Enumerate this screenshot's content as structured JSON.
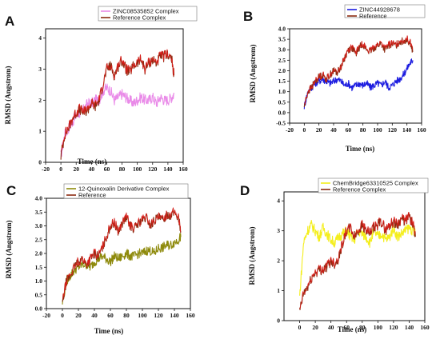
{
  "chart_data": [
    {
      "type": "line",
      "panel": "A",
      "xlabel": "Time (ns)",
      "ylabel": "RMSD (Angstrom)",
      "xlim": [
        -20,
        160
      ],
      "ylim": [
        0,
        4.3
      ],
      "xticks": [
        "-20",
        "0",
        "20",
        "40",
        "60",
        "80",
        "100",
        "120",
        "140",
        "160"
      ],
      "yticks": [
        "0",
        "1",
        "2",
        "3",
        "4"
      ],
      "legend_position": "top",
      "series": [
        {
          "name": "ZINC08535852 Complex",
          "color": "#e98ae8",
          "x": [
            0,
            5,
            10,
            15,
            20,
            25,
            30,
            35,
            40,
            45,
            50,
            55,
            60,
            65,
            70,
            75,
            80,
            85,
            90,
            95,
            100,
            105,
            110,
            115,
            120,
            125,
            130,
            135,
            140,
            145,
            148
          ],
          "y": [
            0.2,
            0.9,
            1.1,
            1.3,
            1.5,
            1.6,
            1.7,
            1.9,
            1.9,
            2.0,
            2.0,
            2.3,
            2.4,
            2.3,
            2.0,
            2.1,
            2.2,
            2.1,
            2.0,
            1.9,
            2.0,
            2.1,
            2.0,
            2.0,
            2.1,
            1.9,
            2.1,
            2.0,
            2.0,
            2.1,
            2.2
          ]
        },
        {
          "name": "Reference Complex",
          "color": "#8b2a10",
          "color2": "#e51c1c",
          "x": [
            0,
            5,
            10,
            15,
            20,
            25,
            30,
            35,
            40,
            45,
            50,
            55,
            60,
            65,
            70,
            75,
            80,
            85,
            90,
            95,
            100,
            105,
            110,
            115,
            120,
            125,
            130,
            135,
            140,
            145,
            148
          ],
          "y": [
            0.2,
            0.9,
            1.1,
            1.4,
            1.6,
            1.7,
            1.6,
            1.7,
            1.9,
            1.8,
            2.0,
            2.5,
            3.0,
            3.1,
            2.8,
            3.1,
            3.3,
            3.0,
            2.9,
            3.1,
            3.2,
            3.3,
            3.0,
            3.2,
            3.3,
            3.2,
            3.4,
            3.4,
            3.5,
            3.3,
            2.8
          ]
        }
      ]
    },
    {
      "type": "line",
      "panel": "B",
      "xlabel": "Time (ns)",
      "ylabel": "RMSD (Angstrom)",
      "xlim": [
        -20,
        160
      ],
      "ylim": [
        -0.5,
        4.0
      ],
      "xticks": [
        "-20",
        "0",
        "20",
        "40",
        "60",
        "80",
        "100",
        "120",
        "140",
        "160"
      ],
      "yticks": [
        "-0.5",
        "0.0",
        "0.5",
        "1.0",
        "1.5",
        "2.0",
        "2.5",
        "3.0",
        "3.5",
        "4.0"
      ],
      "legend_position": "top",
      "series": [
        {
          "name": "ZINC44928678",
          "color": "#1c1ce0",
          "x": [
            0,
            5,
            10,
            15,
            20,
            25,
            30,
            35,
            40,
            45,
            50,
            55,
            60,
            65,
            70,
            75,
            80,
            85,
            90,
            95,
            100,
            105,
            110,
            115,
            120,
            125,
            130,
            135,
            140,
            145,
            148
          ],
          "y": [
            0.3,
            1.0,
            1.2,
            1.4,
            1.5,
            1.6,
            1.5,
            1.4,
            1.5,
            1.6,
            1.5,
            1.3,
            1.4,
            1.2,
            1.3,
            1.4,
            1.3,
            1.4,
            1.2,
            1.3,
            1.4,
            1.3,
            1.5,
            1.2,
            1.3,
            1.5,
            1.6,
            1.8,
            2.1,
            2.4,
            2.5
          ]
        },
        {
          "name": "Reference",
          "color": "#8b2a10",
          "color2": "#e51c1c",
          "x": [
            0,
            5,
            10,
            15,
            20,
            25,
            30,
            35,
            40,
            45,
            50,
            55,
            60,
            65,
            70,
            75,
            80,
            85,
            90,
            95,
            100,
            105,
            110,
            115,
            120,
            125,
            130,
            135,
            140,
            145,
            148
          ],
          "y": [
            0.3,
            1.0,
            1.2,
            1.5,
            1.7,
            1.8,
            1.6,
            1.8,
            2.0,
            1.9,
            2.2,
            2.6,
            3.0,
            3.1,
            2.8,
            3.1,
            3.3,
            3.0,
            2.9,
            3.1,
            3.2,
            3.3,
            3.0,
            3.2,
            3.3,
            3.2,
            3.4,
            3.4,
            3.5,
            3.3,
            2.9
          ]
        }
      ]
    },
    {
      "type": "line",
      "panel": "C",
      "xlabel": "Time (ns)",
      "ylabel": "RMSD (Angstrom)",
      "xlim": [
        -20,
        160
      ],
      "ylim": [
        0.0,
        4.0
      ],
      "xticks": [
        "-20",
        "0",
        "20",
        "40",
        "60",
        "80",
        "100",
        "120",
        "140",
        "160"
      ],
      "yticks": [
        "0.0",
        "0.5",
        "1.0",
        "1.5",
        "2.0",
        "2.5",
        "3.0",
        "3.5",
        "4.0"
      ],
      "legend_position": "top",
      "series": [
        {
          "name": "12-Quinoxalin Derivative Complex",
          "color": "#8e8a0c",
          "x": [
            0,
            5,
            10,
            15,
            20,
            25,
            30,
            35,
            40,
            45,
            50,
            55,
            60,
            65,
            70,
            75,
            80,
            85,
            90,
            95,
            100,
            105,
            110,
            115,
            120,
            125,
            130,
            135,
            140,
            145,
            148
          ],
          "y": [
            0.2,
            1.0,
            1.2,
            1.4,
            1.5,
            1.6,
            1.6,
            1.5,
            1.7,
            1.8,
            1.9,
            1.8,
            1.7,
            1.9,
            1.8,
            1.9,
            2.0,
            1.9,
            1.9,
            2.0,
            2.0,
            2.1,
            2.1,
            2.0,
            2.2,
            2.2,
            2.3,
            2.3,
            2.4,
            2.5,
            2.6
          ]
        },
        {
          "name": "Reference",
          "color": "#8b2a10",
          "color2": "#e51c1c",
          "x": [
            0,
            5,
            10,
            15,
            20,
            25,
            30,
            35,
            40,
            45,
            50,
            55,
            60,
            65,
            70,
            75,
            80,
            85,
            90,
            95,
            100,
            105,
            110,
            115,
            120,
            125,
            130,
            135,
            140,
            145,
            148
          ],
          "y": [
            0.2,
            1.0,
            1.2,
            1.5,
            1.7,
            1.8,
            1.6,
            1.8,
            2.0,
            1.9,
            2.2,
            2.6,
            3.0,
            3.1,
            2.8,
            3.1,
            3.3,
            3.0,
            2.9,
            3.1,
            3.2,
            3.3,
            3.0,
            3.2,
            3.3,
            3.2,
            3.4,
            3.4,
            3.5,
            3.3,
            2.8
          ]
        }
      ]
    },
    {
      "type": "line",
      "panel": "D",
      "xlabel": "Time (ns)",
      "ylabel": "RMSD (Angstrom)",
      "xlim": [
        -20,
        160
      ],
      "ylim": [
        0,
        4.3
      ],
      "xticks": [
        "0",
        "20",
        "40",
        "60",
        "80",
        "100",
        "120",
        "140",
        "160"
      ],
      "yticks": [
        "0",
        "1",
        "2",
        "3",
        "4"
      ],
      "legend_position": "top",
      "series": [
        {
          "name": "ChemBridge63310525 Complex",
          "color": "#f4ee1c",
          "x": [
            0,
            5,
            10,
            15,
            20,
            25,
            30,
            35,
            40,
            45,
            50,
            55,
            60,
            65,
            70,
            75,
            80,
            85,
            90,
            95,
            100,
            105,
            110,
            115,
            120,
            125,
            130,
            135,
            140,
            145,
            148
          ],
          "y": [
            0.8,
            2.6,
            3.0,
            3.2,
            3.0,
            2.8,
            3.1,
            2.9,
            2.7,
            2.6,
            2.8,
            2.9,
            3.0,
            2.8,
            2.7,
            3.0,
            2.9,
            2.8,
            2.6,
            3.0,
            2.8,
            2.9,
            2.7,
            2.8,
            3.1,
            2.8,
            2.9,
            3.0,
            3.1,
            3.0,
            2.9
          ]
        },
        {
          "name": "Reference Complex",
          "color": "#8b2a10",
          "color2": "#e51c1c",
          "x": [
            0,
            5,
            10,
            15,
            20,
            25,
            30,
            35,
            40,
            45,
            50,
            55,
            60,
            65,
            70,
            75,
            80,
            85,
            90,
            95,
            100,
            105,
            110,
            115,
            120,
            125,
            130,
            135,
            140,
            145,
            148
          ],
          "y": [
            0.3,
            0.9,
            1.1,
            1.4,
            1.6,
            1.7,
            1.7,
            1.8,
            2.0,
            1.9,
            2.1,
            2.6,
            3.0,
            3.1,
            2.8,
            3.0,
            3.2,
            3.0,
            2.9,
            3.1,
            3.2,
            3.3,
            3.0,
            3.2,
            3.3,
            3.2,
            3.4,
            3.3,
            3.5,
            3.2,
            2.8
          ]
        }
      ]
    }
  ]
}
